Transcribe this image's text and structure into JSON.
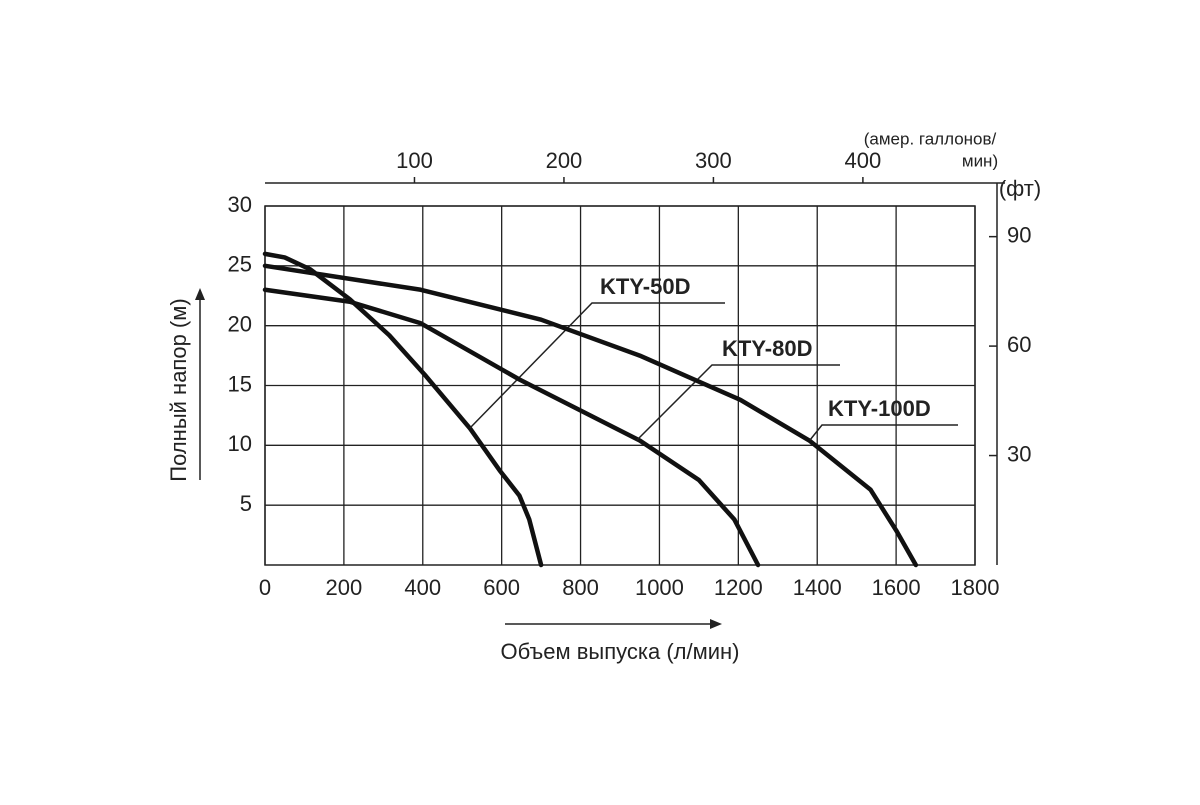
{
  "chart_data": {
    "type": "line",
    "x_label": "Объем выпуска (л/мин)",
    "y_label": "Полный напор (м)",
    "x2_label_lines": [
      "(амер. галлонов/",
      "мин)"
    ],
    "y2_label": "(фт)",
    "xlim": [
      0,
      1800
    ],
    "xticks": [
      0,
      200,
      400,
      600,
      800,
      1000,
      1200,
      1400,
      1600,
      1800
    ],
    "ylim": [
      0,
      30
    ],
    "yticks": [
      5,
      10,
      15,
      20,
      25,
      30
    ],
    "x2lim": [
      0,
      475
    ],
    "x2ticks": [
      100,
      200,
      300,
      400
    ],
    "y2lim": [
      0,
      98.4
    ],
    "y2ticks": [
      30,
      60,
      90
    ],
    "grid": true,
    "series": [
      {
        "name": "KTY-50D",
        "color": "#111111",
        "x": [
          0,
          50,
          115,
          215,
          315,
          405,
          520,
          595,
          645,
          670,
          700
        ],
        "values": [
          26,
          25.7,
          24.7,
          22.2,
          19.2,
          15.9,
          11.4,
          7.9,
          5.8,
          3.8,
          0
        ]
      },
      {
        "name": "KTY-80D",
        "color": "#111111",
        "x": [
          0,
          215,
          395,
          645,
          950,
          1100,
          1190,
          1250
        ],
        "values": [
          23,
          22,
          20.2,
          15.5,
          10.4,
          7.1,
          3.8,
          0
        ]
      },
      {
        "name": "KTY-100D",
        "color": "#111111",
        "x": [
          0,
          395,
          700,
          950,
          1205,
          1380,
          1535,
          1600,
          1650
        ],
        "values": [
          25,
          23,
          20.5,
          17.5,
          13.8,
          10.4,
          6.3,
          2.9,
          0
        ]
      }
    ]
  }
}
